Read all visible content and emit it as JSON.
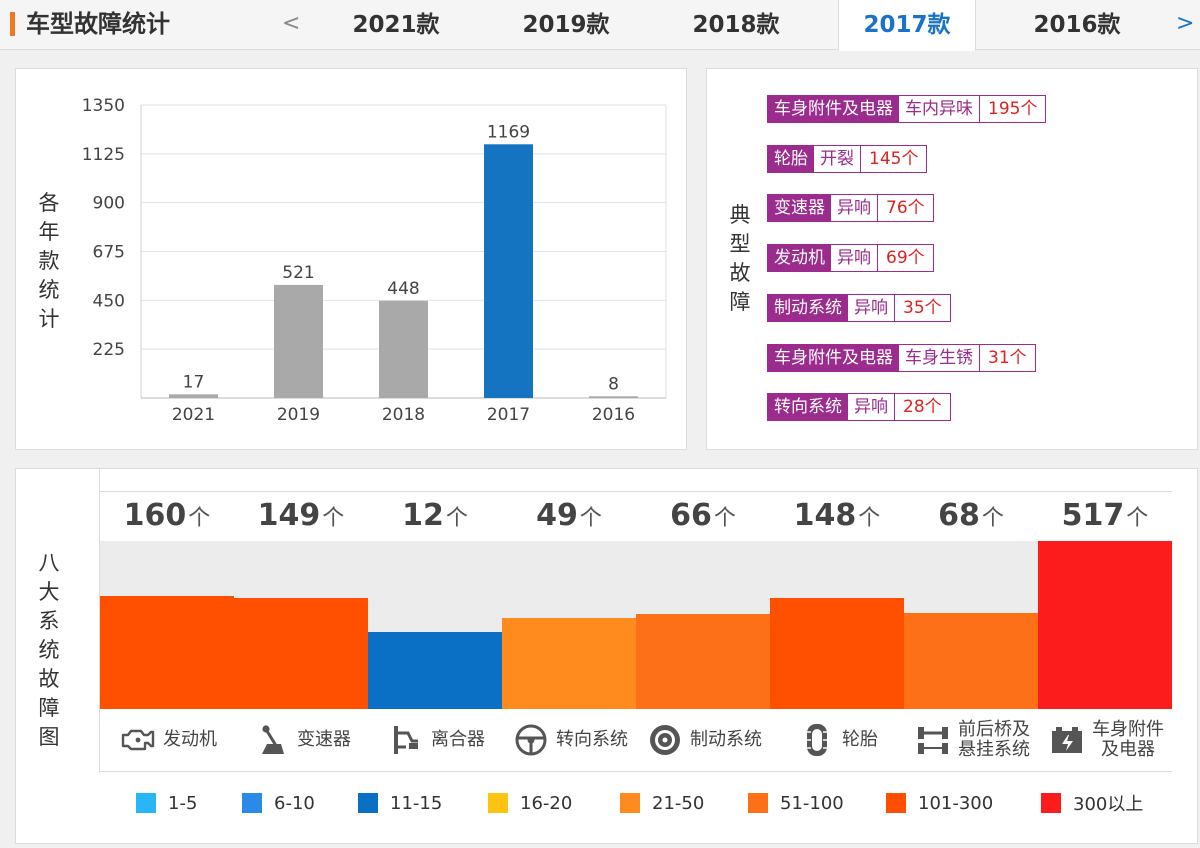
{
  "header": {
    "title": "车型故障统计",
    "prev_arrow": "<",
    "next_arrow": ">",
    "tabs": [
      {
        "label": "2021款",
        "active": false
      },
      {
        "label": "2019款",
        "active": false
      },
      {
        "label": "2018款",
        "active": false
      },
      {
        "label": "2017款",
        "active": true
      },
      {
        "label": "2016款",
        "active": false
      }
    ]
  },
  "year_panel": {
    "side_label": [
      "各",
      "年",
      "款",
      "统",
      "计"
    ]
  },
  "fault_panel": {
    "side_label": [
      "典",
      "型",
      "故",
      "障"
    ],
    "items": [
      {
        "category": "车身附件及电器",
        "issue": "车内异味",
        "count": "195个"
      },
      {
        "category": "轮胎",
        "issue": "开裂",
        "count": "145个"
      },
      {
        "category": "变速器",
        "issue": "异响",
        "count": "76个"
      },
      {
        "category": "发动机",
        "issue": "异响",
        "count": "69个"
      },
      {
        "category": "制动系统",
        "issue": "异响",
        "count": "35个"
      },
      {
        "category": "车身附件及电器",
        "issue": "车身生锈",
        "count": "31个"
      },
      {
        "category": "转向系统",
        "issue": "异响",
        "count": "28个"
      }
    ]
  },
  "systems_panel": {
    "side_label": [
      "八",
      "大",
      "系",
      "统",
      "故",
      "障",
      "图"
    ],
    "unit": "个",
    "items": [
      {
        "name_lines": [
          "发动机"
        ],
        "count": "160",
        "value": 160,
        "color": "#fe5000",
        "icon": "engine-icon"
      },
      {
        "name_lines": [
          "变速器"
        ],
        "count": "149",
        "value": 149,
        "color": "#fe5000",
        "icon": "gearshift-icon"
      },
      {
        "name_lines": [
          "离合器"
        ],
        "count": "12",
        "value": 12,
        "color": "#0a70c6",
        "icon": "clutch-icon"
      },
      {
        "name_lines": [
          "转向系统"
        ],
        "count": "49",
        "value": 49,
        "color": "#ff8a1e",
        "icon": "steering-wheel-icon"
      },
      {
        "name_lines": [
          "制动系统"
        ],
        "count": "66",
        "value": 66,
        "color": "#fe7018",
        "icon": "brake-disc-icon"
      },
      {
        "name_lines": [
          "轮胎"
        ],
        "count": "148",
        "value": 148,
        "color": "#fe5000",
        "icon": "tire-icon"
      },
      {
        "name_lines": [
          "前后桥及",
          "悬挂系统"
        ],
        "count": "68",
        "value": 68,
        "color": "#fe7018",
        "icon": "suspension-icon"
      },
      {
        "name_lines": [
          "车身附件",
          "及电器"
        ],
        "count": "517",
        "value": 517,
        "color": "#fc1c1c",
        "icon": "battery-icon"
      }
    ],
    "legend": [
      {
        "label": "1-5",
        "color": "#29b6f6"
      },
      {
        "label": "6-10",
        "color": "#2b8ae8"
      },
      {
        "label": "11-15",
        "color": "#0a70c6"
      },
      {
        "label": "16-20",
        "color": "#fcc310"
      },
      {
        "label": "21-50",
        "color": "#ff8a1e"
      },
      {
        "label": "51-100",
        "color": "#fe7018"
      },
      {
        "label": "101-300",
        "color": "#fe5000"
      },
      {
        "label": "300以上",
        "color": "#fc1c1c"
      }
    ]
  },
  "chart_data": [
    {
      "type": "bar",
      "categories": [
        "2021",
        "2019",
        "2018",
        "2017",
        "2016"
      ],
      "values": [
        17,
        521,
        448,
        1169,
        8
      ],
      "data_labels": [
        "17",
        "521",
        "448",
        "1169",
        "8"
      ],
      "bar_colors": [
        "#a9a9a9",
        "#a9a9a9",
        "#a9a9a9",
        "#1474c2",
        "#a9a9a9"
      ],
      "yticks": [
        225,
        450,
        675,
        900,
        1125,
        1350
      ],
      "ylim": [
        0,
        1350
      ],
      "ylabel": "各年款统计",
      "grid": true
    },
    {
      "type": "bar",
      "categories": [
        "发动机",
        "变速器",
        "离合器",
        "转向系统",
        "制动系统",
        "轮胎",
        "前后桥及悬挂系统",
        "车身附件及电器"
      ],
      "values": [
        160,
        149,
        12,
        49,
        66,
        148,
        68,
        517
      ],
      "ylabel": "八大系统故障图"
    }
  ]
}
